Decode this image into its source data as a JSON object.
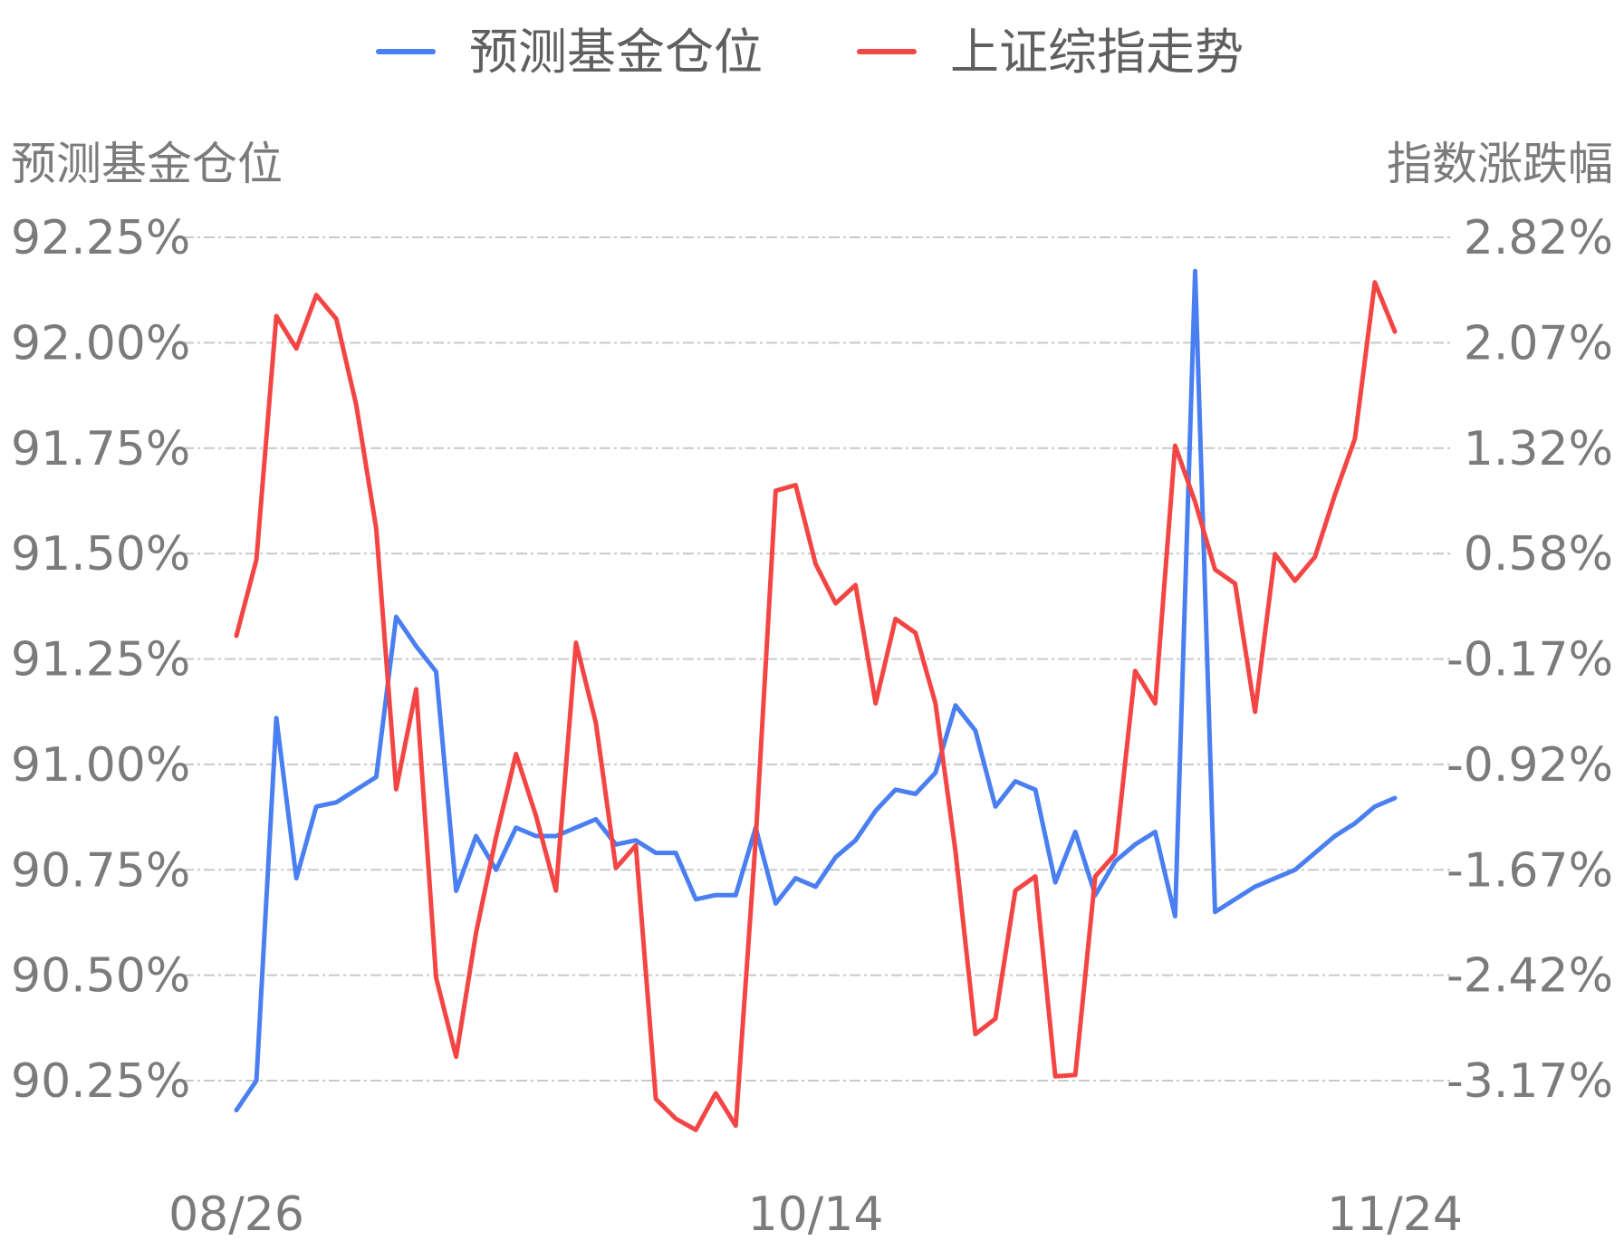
{
  "chart_data": {
    "type": "line",
    "legend_position": "top-center",
    "grid": true,
    "yaxis_left": {
      "title": "预测基金仓位",
      "ticks": [
        "92.25%",
        "92.00%",
        "91.75%",
        "91.50%",
        "91.25%",
        "91.00%",
        "90.75%",
        "90.50%",
        "90.25%"
      ],
      "range": [
        90.25,
        92.25
      ]
    },
    "yaxis_right": {
      "title": "指数涨跌幅",
      "ticks": [
        "2.82%",
        "2.07%",
        "1.32%",
        "0.58%",
        "-0.17%",
        "-0.92%",
        "-1.67%",
        "-2.42%",
        "-3.17%"
      ],
      "range": [
        -3.17,
        2.82
      ]
    },
    "x_tick_labels": [
      "08/26",
      "10/14",
      "11/24"
    ],
    "series": [
      {
        "name": "预测基金仓位",
        "axis": "left",
        "color": "#4a7ff2",
        "values": [
          90.18,
          90.25,
          91.11,
          90.73,
          90.9,
          90.91,
          90.94,
          90.97,
          91.35,
          91.28,
          91.22,
          90.7,
          90.83,
          90.75,
          90.85,
          90.83,
          90.83,
          90.85,
          90.87,
          90.81,
          90.82,
          90.79,
          90.79,
          90.68,
          90.69,
          90.69,
          90.85,
          90.67,
          90.73,
          90.71,
          90.78,
          90.82,
          90.89,
          90.94,
          90.93,
          90.98,
          91.14,
          91.08,
          90.9,
          90.96,
          90.94,
          90.72,
          90.84,
          90.69,
          90.77,
          90.81,
          90.84,
          90.64,
          92.17,
          90.65,
          90.68,
          90.71,
          90.73,
          90.75,
          90.79,
          90.83,
          90.86,
          90.9,
          90.92
        ]
      },
      {
        "name": "上证综指走势",
        "axis": "right",
        "color": "#f44545",
        "values": [
          -0.01,
          0.53,
          2.26,
          2.03,
          2.41,
          2.24,
          1.63,
          0.75,
          -1.1,
          -0.39,
          -2.44,
          -3.0,
          -2.12,
          -1.44,
          -0.85,
          -1.29,
          -1.82,
          -0.06,
          -0.63,
          -1.66,
          -1.5,
          -3.3,
          -3.44,
          -3.52,
          -3.26,
          -3.49,
          -1.46,
          1.02,
          1.06,
          0.5,
          0.22,
          0.35,
          -0.49,
          0.11,
          0.01,
          -0.49,
          -1.54,
          -2.84,
          -2.73,
          -1.82,
          -1.72,
          -3.14,
          -3.13,
          -1.72,
          -1.56,
          -0.26,
          -0.49,
          1.34,
          0.94,
          0.46,
          0.36,
          -0.55,
          0.57,
          0.38,
          0.55,
          0.99,
          1.39,
          2.5,
          2.15
        ]
      }
    ]
  }
}
